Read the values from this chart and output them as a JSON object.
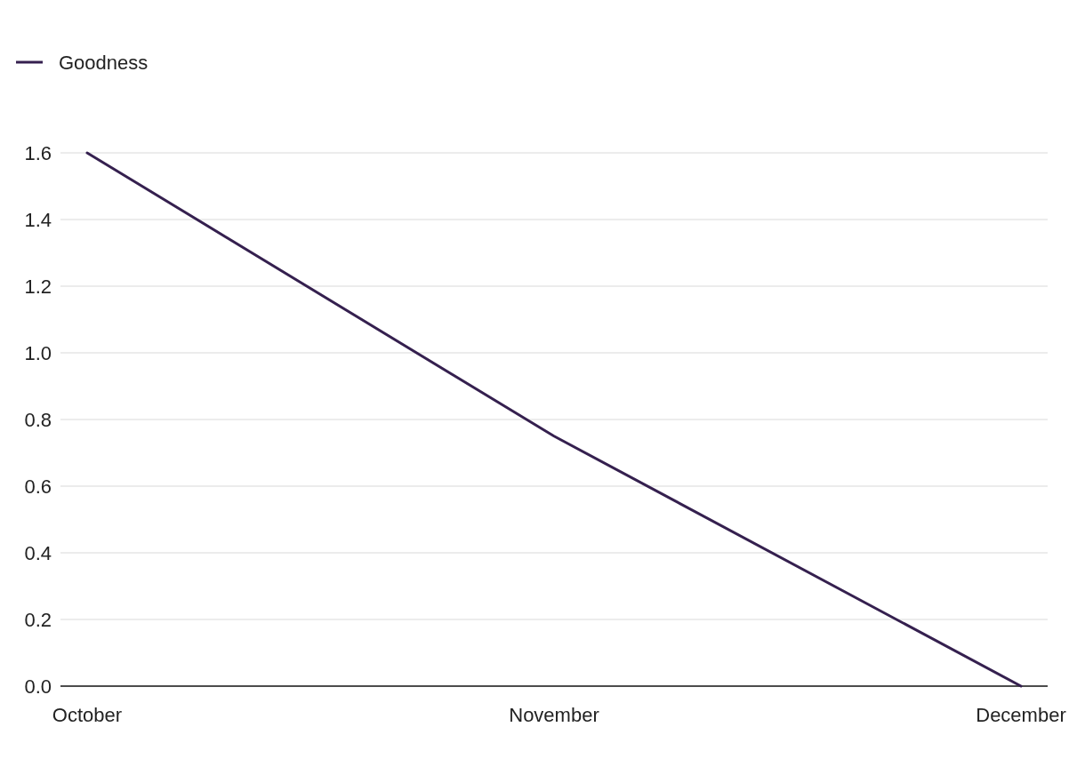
{
  "chart_data": {
    "type": "line",
    "categories": [
      "October",
      "November",
      "December"
    ],
    "series": [
      {
        "name": "Goodness",
        "color": "#35204f",
        "values": [
          1.6,
          0.75,
          0.0
        ]
      }
    ],
    "ylim": [
      0,
      1.6
    ],
    "yticks": [
      {
        "value": 0,
        "label": "0.0"
      },
      0.2,
      0.4,
      0.6,
      0.8,
      {
        "value": 1,
        "label": "1.0"
      },
      1.2,
      1.4,
      1.6
    ],
    "grid": "y",
    "legend": "top left"
  }
}
